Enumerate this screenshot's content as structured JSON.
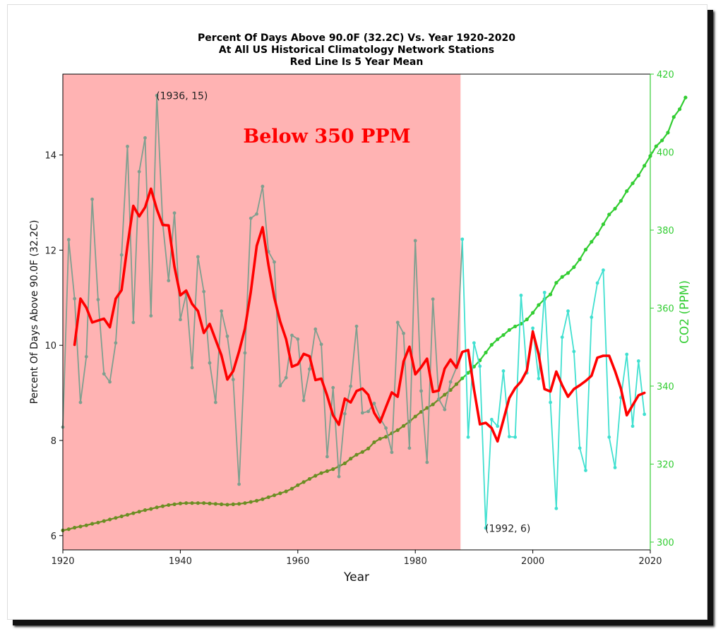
{
  "chart_data": {
    "type": "line",
    "title": [
      "Percent Of Days Above 90.0F (32.2C) Vs. Year 1920-2020",
      "At All US Historical Climatology Network Stations",
      "Red Line Is 5 Year Mean"
    ],
    "xlabel": "Year",
    "ylabel_left": "Percent Of Days Above 90.0F (32.2C)",
    "ylabel_right": "CO2 (PPM)",
    "xlim": [
      1920,
      2020
    ],
    "ylim_left": [
      5.7,
      15.7
    ],
    "ylim_right": [
      298,
      420
    ],
    "xticks": [
      "1920",
      "1940",
      "1960",
      "1980",
      "2000",
      "2020"
    ],
    "yticks_left": [
      "6",
      "8",
      "10",
      "12",
      "14"
    ],
    "yticks_right": [
      "300",
      "320",
      "340",
      "360",
      "380",
      "400",
      "420"
    ],
    "shaded_region": {
      "x0": 1920,
      "x1": 1987.7,
      "color": "#ffb3b3"
    },
    "banner_text": "Below 350 PPM",
    "annotations": [
      {
        "text": "(1936, 15)",
        "x": 1936,
        "y": 15.25
      },
      {
        "text": "(1992, 6)",
        "x": 1992,
        "y": 6.15
      }
    ],
    "series": [
      {
        "name": "Percent Of Days Above 90.0F",
        "axis": "left",
        "color_early": "#7f9f8f",
        "color_late": "#40e0d0",
        "split_year": 1988,
        "x_start": 1920,
        "values": [
          8.28,
          12.22,
          10.98,
          8.8,
          9.76,
          13.07,
          10.96,
          9.4,
          9.23,
          10.05,
          11.9,
          14.18,
          10.48,
          13.65,
          14.36,
          10.62,
          15.25,
          12.56,
          11.36,
          12.78,
          10.54,
          11.08,
          9.53,
          11.86,
          11.13,
          9.63,
          8.8,
          10.72,
          10.19,
          9.28,
          7.08,
          9.84,
          12.67,
          12.76,
          13.34,
          11.97,
          11.75,
          9.15,
          9.32,
          10.21,
          10.13,
          8.84,
          9.5,
          10.34,
          10.02,
          7.66,
          9.11,
          7.24,
          8.56,
          9.14,
          10.4,
          8.58,
          8.61,
          8.78,
          8.47,
          8.26,
          7.75,
          10.48,
          10.25,
          7.84,
          12.2,
          9.04,
          7.54,
          10.97,
          8.87,
          8.65,
          9.23,
          9.53,
          12.23,
          8.07,
          10.05,
          9.56,
          6.16,
          8.44,
          8.3,
          9.46,
          8.08,
          8.07,
          11.05,
          9.42,
          10.36,
          9.3,
          11.11,
          8.8,
          6.57,
          10.17,
          10.72,
          9.87,
          7.84,
          7.37,
          10.59,
          11.31,
          11.58,
          8.07,
          7.43,
          8.9,
          9.81,
          8.3,
          9.67,
          8.55
        ]
      },
      {
        "name": "5 Year Mean",
        "axis": "left",
        "color": "#ff0000",
        "x_start": 1922,
        "values": [
          10.01,
          10.98,
          10.79,
          10.48,
          10.52,
          10.56,
          10.38,
          10.98,
          11.16,
          12.09,
          12.93,
          12.71,
          12.9,
          13.29,
          12.86,
          12.53,
          12.52,
          11.65,
          11.05,
          11.15,
          10.87,
          10.72,
          10.26,
          10.45,
          10.12,
          9.79,
          9.28,
          9.46,
          9.87,
          10.35,
          11.12,
          12.09,
          12.48,
          11.69,
          11.0,
          10.5,
          10.13,
          9.55,
          9.6,
          9.82,
          9.77,
          9.27,
          9.3,
          8.94,
          8.53,
          8.33,
          8.88,
          8.8,
          9.04,
          9.09,
          8.96,
          8.58,
          8.38,
          8.7,
          9.01,
          8.92,
          9.66,
          9.97,
          9.39,
          9.54,
          9.72,
          9.02,
          9.05,
          9.51,
          9.7,
          9.53,
          9.86,
          9.9,
          9.07,
          8.34,
          8.37,
          8.26,
          7.98,
          8.43,
          8.89,
          9.1,
          9.24,
          9.47,
          10.29,
          9.81,
          9.08,
          9.03,
          9.45,
          9.16,
          8.92,
          9.08,
          9.16,
          9.25,
          9.36,
          9.74,
          9.78,
          9.78,
          9.46,
          9.09,
          8.53,
          8.74,
          8.95,
          9.0
        ]
      },
      {
        "name": "CO2 (PPM)",
        "axis": "right",
        "color_early": "#6b8e23",
        "color_late": "#32cd32",
        "split_year": 1988,
        "x_start": 1920,
        "values": [
          303.0,
          303.3,
          303.7,
          304.0,
          304.3,
          304.7,
          305.0,
          305.4,
          305.8,
          306.2,
          306.6,
          307.0,
          307.4,
          307.8,
          308.2,
          308.5,
          308.9,
          309.2,
          309.5,
          309.7,
          309.9,
          310.0,
          310.0,
          310.0,
          310.0,
          309.9,
          309.8,
          309.7,
          309.6,
          309.7,
          309.8,
          310.0,
          310.3,
          310.6,
          311.0,
          311.5,
          312.0,
          312.5,
          313.0,
          313.7,
          314.6,
          315.4,
          316.2,
          317.0,
          317.7,
          318.2,
          318.7,
          319.4,
          320.2,
          321.4,
          322.4,
          323.1,
          324.0,
          325.6,
          326.5,
          327.0,
          327.9,
          328.7,
          329.8,
          330.9,
          332.2,
          333.4,
          334.4,
          335.3,
          336.6,
          337.8,
          339.0,
          340.5,
          342.0,
          343.4,
          345.0,
          346.6,
          348.6,
          350.6,
          352.0,
          353.1,
          354.4,
          355.3,
          356.0,
          357.1,
          358.8,
          360.8,
          362.3,
          363.5,
          366.5,
          368.0,
          369.0,
          370.5,
          372.5,
          375.0,
          377.0,
          379.0,
          381.5,
          384.0,
          385.5,
          387.5,
          390.0,
          392.0,
          394.0,
          396.5,
          399.0,
          401.5,
          403.0,
          405.0,
          409.0,
          411.0,
          414.0
        ]
      }
    ]
  }
}
